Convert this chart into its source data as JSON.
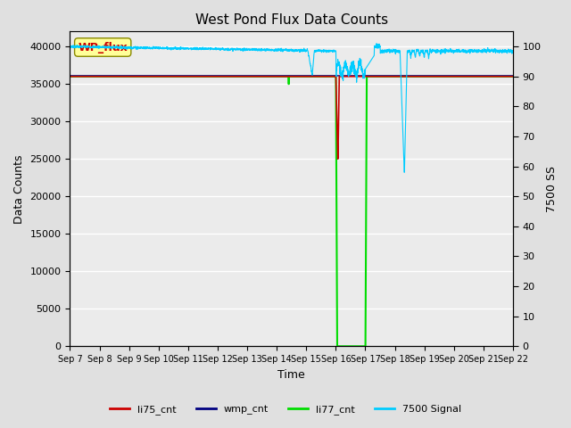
{
  "title": "West Pond Flux Data Counts",
  "xlabel": "Time",
  "ylabel_left": "Data Counts",
  "ylabel_right": "7500 SS",
  "ylim_left": [
    0,
    42000
  ],
  "ylim_right": [
    0,
    105
  ],
  "x_tick_labels": [
    "Sep 7",
    "Sep 8",
    "Sep 9",
    "Sep 10",
    "Sep 11",
    "Sep 12",
    "Sep 13",
    "Sep 14",
    "Sep 15",
    "Sep 16",
    "Sep 17",
    "Sep 18",
    "Sep 19",
    "Sep 20",
    "Sep 21",
    "Sep 22"
  ],
  "yticks_left": [
    0,
    5000,
    10000,
    15000,
    20000,
    25000,
    30000,
    35000,
    40000
  ],
  "yticks_right": [
    0,
    10,
    20,
    30,
    40,
    50,
    60,
    70,
    80,
    90,
    100
  ],
  "bg_color": "#e0e0e0",
  "plot_bg_color": "#ebebeb",
  "li75_color": "#cc0000",
  "wmp_color": "#000080",
  "li77_color": "#00dd00",
  "signal_color": "#00ccff",
  "annotation_box_color": "#ffff99",
  "annotation_text_color": "#cc0000",
  "annotation_text": "WP_flux",
  "li75_constant": 36000,
  "wmp_constant": 36100,
  "li77_constant": 36000
}
